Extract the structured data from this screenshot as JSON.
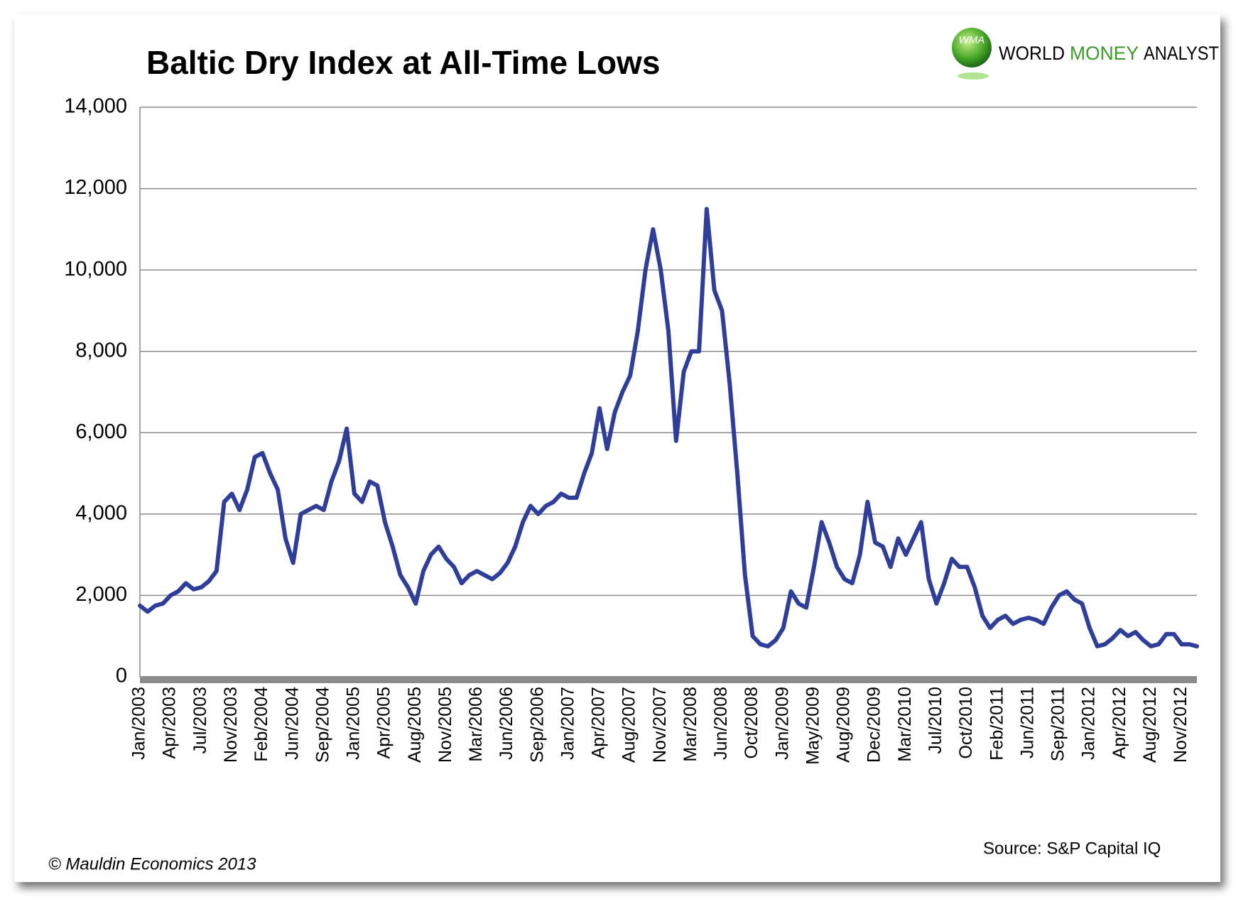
{
  "chart_data": {
    "type": "line",
    "title": "Baltic Dry Index at All-Time Lows",
    "logo": {
      "mark": "WMA",
      "words": [
        "WORLD",
        "MONEY",
        "ANALYST"
      ]
    },
    "source": "Source: S&P Capital IQ",
    "copyright": "© Mauldin Economics 2013",
    "categories": [
      "Jan/2003",
      null,
      null,
      null,
      "Apr/2003",
      null,
      null,
      null,
      "Jul/2003",
      null,
      null,
      null,
      "Nov/2003",
      null,
      null,
      null,
      "Feb/2004",
      null,
      null,
      null,
      "Jun/2004",
      null,
      null,
      null,
      "Sep/2004",
      null,
      null,
      null,
      "Jan/2005",
      null,
      null,
      null,
      "Apr/2005",
      null,
      null,
      null,
      "Aug/2005",
      null,
      null,
      null,
      "Nov/2005",
      null,
      null,
      null,
      "Mar/2006",
      null,
      null,
      null,
      "Jun/2006",
      null,
      null,
      null,
      "Sep/2006",
      null,
      null,
      null,
      "Jan/2007",
      null,
      null,
      null,
      "Apr/2007",
      null,
      null,
      null,
      "Aug/2007",
      null,
      null,
      null,
      "Nov/2007",
      null,
      null,
      null,
      "Mar/2008",
      null,
      null,
      null,
      "Jun/2008",
      null,
      null,
      null,
      "Oct/2008",
      null,
      null,
      null,
      "Jan/2009",
      null,
      null,
      null,
      "May/2009",
      null,
      null,
      null,
      "Aug/2009",
      null,
      null,
      null,
      "Dec/2009",
      null,
      null,
      null,
      "Mar/2010",
      null,
      null,
      null,
      "Jul/2010",
      null,
      null,
      null,
      "Oct/2010",
      null,
      null,
      null,
      "Feb/2011",
      null,
      null,
      null,
      "Jun/2011",
      null,
      null,
      null,
      "Sep/2011",
      null,
      null,
      null,
      "Jan/2012",
      null,
      null,
      null,
      "Apr/2012",
      null,
      null,
      null,
      "Aug/2012",
      null,
      null,
      null,
      "Nov/2012",
      null,
      null
    ],
    "series": [
      {
        "name": "Baltic Dry Index",
        "color": "#2f3e98",
        "values": [
          1750,
          1600,
          1750,
          1800,
          2000,
          2100,
          2300,
          2150,
          2200,
          2350,
          2600,
          4300,
          4500,
          4100,
          4600,
          5400,
          5500,
          5000,
          4600,
          3400,
          2800,
          4000,
          4100,
          4200,
          4100,
          4800,
          5300,
          6100,
          4500,
          4300,
          4800,
          4700,
          3800,
          3200,
          2500,
          2200,
          1800,
          2600,
          3000,
          3200,
          2900,
          2700,
          2300,
          2500,
          2600,
          2500,
          2400,
          2550,
          2800,
          3200,
          3800,
          4200,
          4000,
          4200,
          4300,
          4500,
          4400,
          4400,
          5000,
          5500,
          6600,
          5600,
          6500,
          7000,
          7400,
          8500,
          10000,
          11000,
          10000,
          8500,
          5800,
          7500,
          8000,
          8000,
          11500,
          9500,
          9000,
          7200,
          5000,
          2500,
          1000,
          800,
          750,
          900,
          1200,
          2100,
          1800,
          1700,
          2700,
          3800,
          3300,
          2700,
          2400,
          2300,
          3000,
          4300,
          3300,
          3200,
          2700,
          3400,
          3000,
          3400,
          3800,
          2400,
          1800,
          2300,
          2900,
          2700,
          2700,
          2200,
          1500,
          1200,
          1400,
          1500,
          1300,
          1400,
          1450,
          1400,
          1300,
          1700,
          2000,
          2100,
          1900,
          1800,
          1200,
          750,
          800,
          950,
          1150,
          1000,
          1100,
          900,
          750,
          800,
          1050,
          1050,
          800,
          800,
          750
        ]
      }
    ],
    "ylim": [
      0,
      14000
    ],
    "yticks": [
      {
        "value": 0,
        "label": "0"
      },
      {
        "value": 2000,
        "label": "2,000"
      },
      {
        "value": 4000,
        "label": "4,000"
      },
      {
        "value": 6000,
        "label": "6,000"
      },
      {
        "value": 8000,
        "label": "8,000"
      },
      {
        "value": 10000,
        "label": "10,000"
      },
      {
        "value": 12000,
        "label": "12,000"
      },
      {
        "value": 14000,
        "label": "14,000"
      }
    ],
    "grid": true
  }
}
